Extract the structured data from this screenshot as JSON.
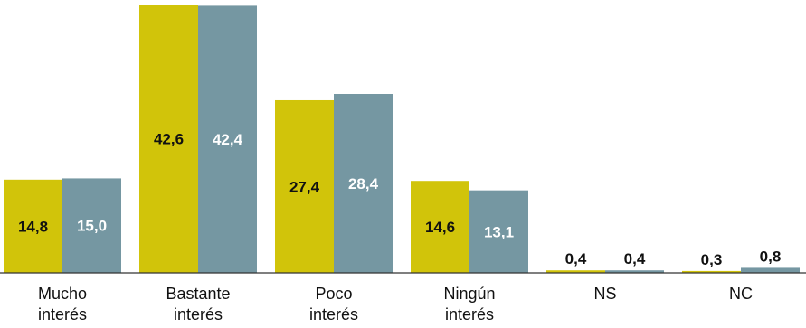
{
  "chart_data": {
    "type": "bar",
    "title": "",
    "xlabel": "",
    "ylabel": "",
    "ylim": [
      0,
      45
    ],
    "categories": [
      [
        "Mucho",
        "interés"
      ],
      [
        "Bastante",
        "interés"
      ],
      [
        "Poco",
        "interés"
      ],
      [
        "Ningún",
        "interés"
      ],
      [
        "NS"
      ],
      [
        "NC"
      ]
    ],
    "series": [
      {
        "values": [
          14.8,
          42.6,
          27.4,
          14.6,
          0.4,
          0.3
        ],
        "labels": [
          "14,8",
          "42,6",
          "27,4",
          "14,6",
          "0,4",
          "0,3"
        ],
        "color": "#d1c40a",
        "label_color": "#111111"
      },
      {
        "values": [
          15.0,
          42.4,
          28.4,
          13.1,
          0.4,
          0.8
        ],
        "labels": [
          "15,0",
          "42,4",
          "28,4",
          "13,1",
          "0,4",
          "0,8"
        ],
        "color": "#7597a2",
        "label_color": "#ffffff"
      }
    ],
    "grid": false,
    "legend": "none"
  }
}
